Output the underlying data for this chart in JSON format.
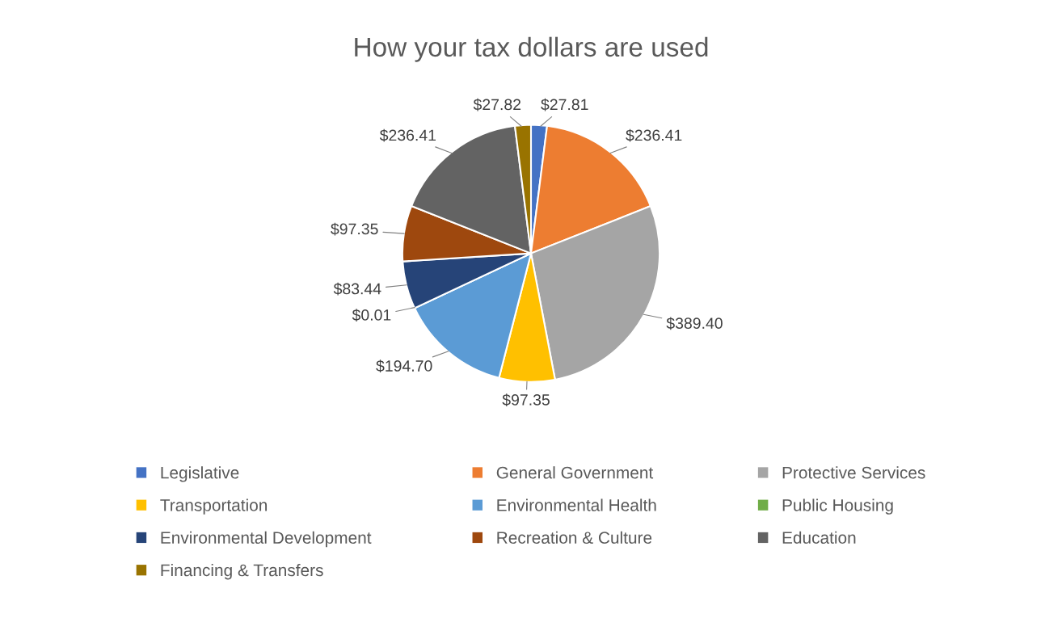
{
  "chart_data": {
    "type": "pie",
    "title": "How your tax dollars are used",
    "categories": [
      "Legislative",
      "General Government",
      "Protective Services",
      "Transportation",
      "Environmental Health",
      "Public Housing",
      "Environmental Development",
      "Recreation & Culture",
      "Education",
      "Financing & Transfers"
    ],
    "values": [
      27.81,
      236.41,
      389.4,
      97.35,
      194.7,
      0.01,
      83.44,
      97.35,
      236.41,
      27.82
    ],
    "value_labels": [
      "$27.81",
      "$236.41",
      "$389.40",
      "$97.35",
      "$194.70",
      "$0.01",
      "$83.44",
      "$97.35",
      "$236.41",
      "$27.82"
    ],
    "colors": [
      "#4472c4",
      "#ed7d31",
      "#a5a5a5",
      "#ffc000",
      "#5b9bd5",
      "#70ad47",
      "#264478",
      "#9e480e",
      "#636363",
      "#997300"
    ],
    "legend": "bottom"
  }
}
